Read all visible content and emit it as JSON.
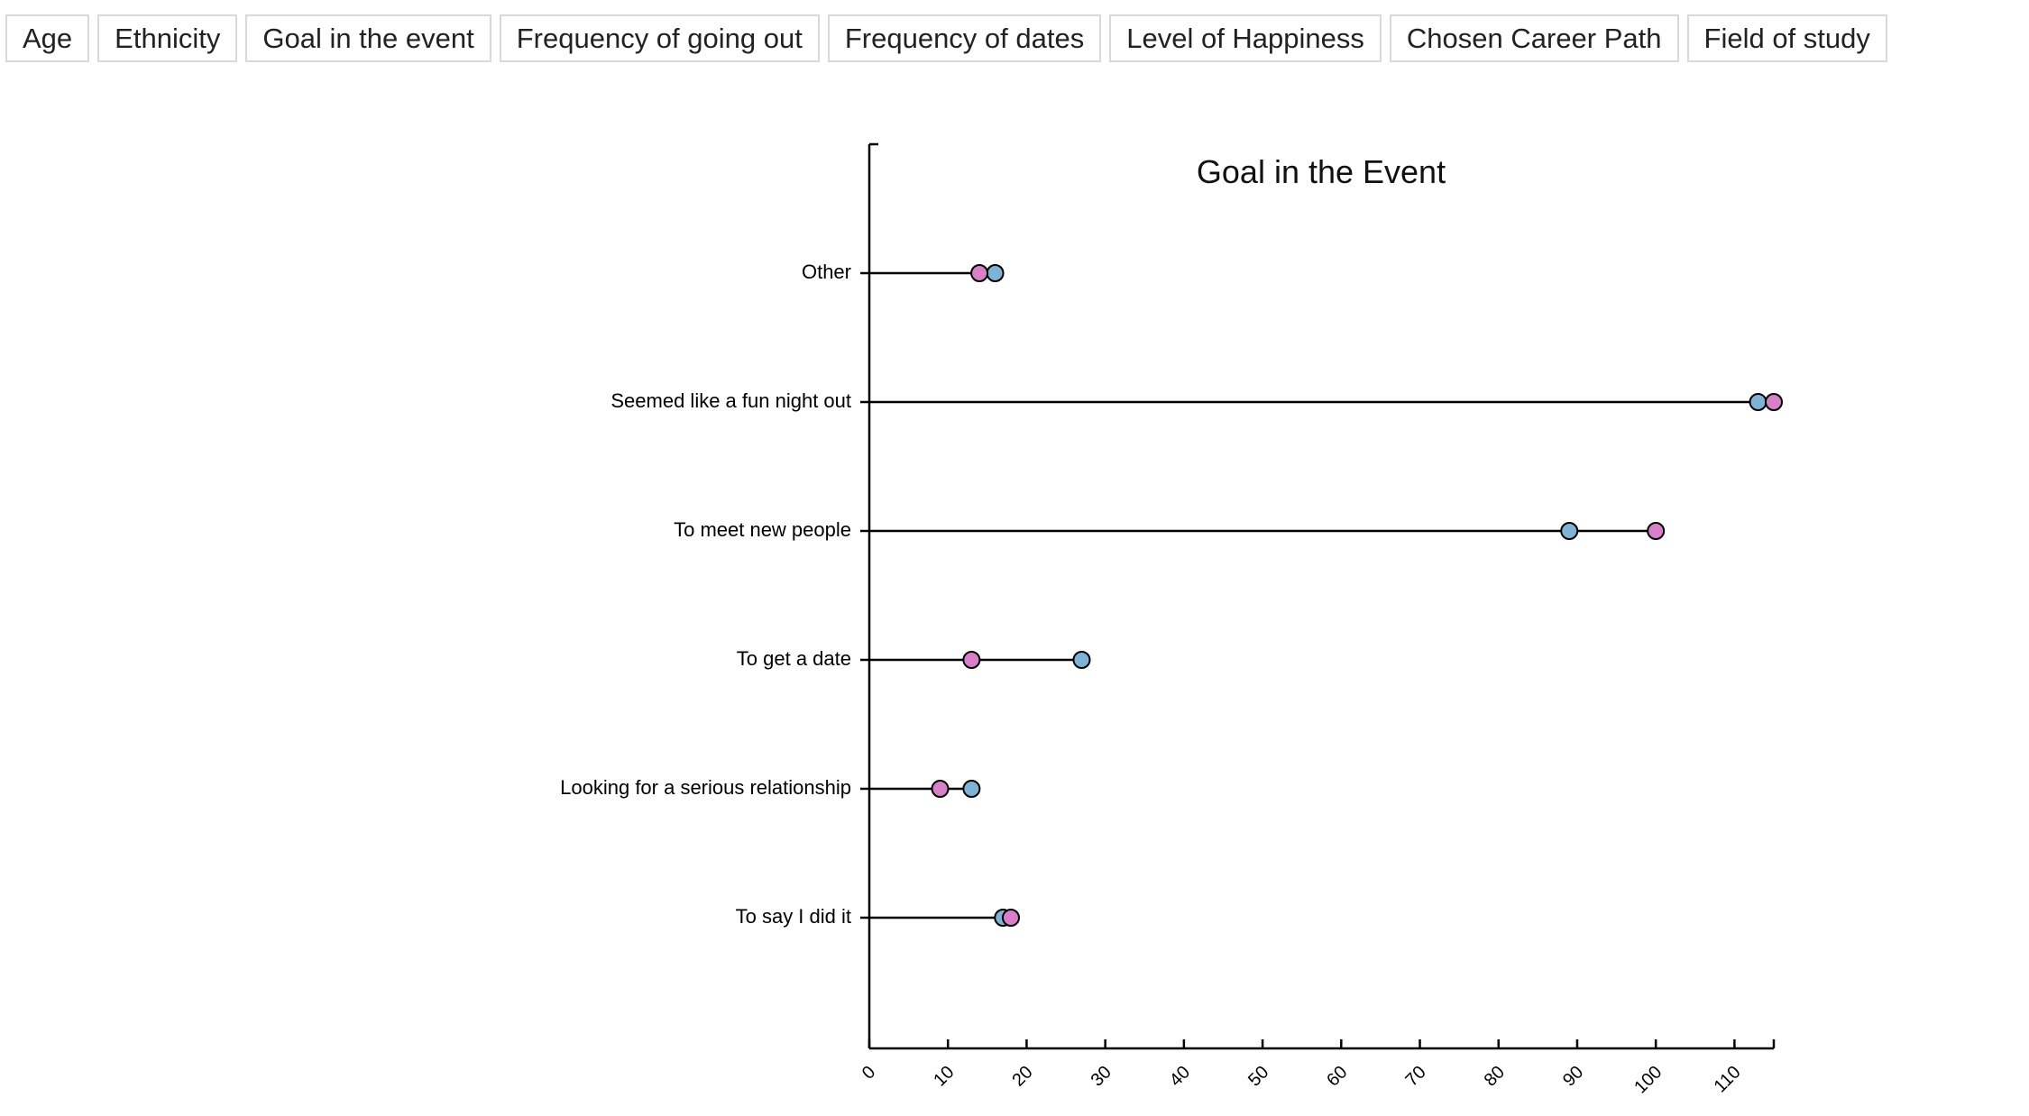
{
  "toolbar": {
    "buttons": [
      {
        "id": "age",
        "label": "Age"
      },
      {
        "id": "ethnicity",
        "label": "Ethnicity"
      },
      {
        "id": "goal",
        "label": "Goal in the event"
      },
      {
        "id": "going-out",
        "label": "Frequency of going out"
      },
      {
        "id": "dates",
        "label": "Frequency of dates"
      },
      {
        "id": "happiness",
        "label": "Level of Happiness"
      },
      {
        "id": "career",
        "label": "Chosen Career Path"
      },
      {
        "id": "field",
        "label": "Field of study"
      }
    ]
  },
  "colors": {
    "series_blue": "#7fb3d5",
    "series_pink": "#d77fc9",
    "line": "#000000"
  },
  "chart_data": {
    "type": "scatter",
    "subtype": "dumbbell",
    "title": "Goal in the Event",
    "xlabel": "",
    "ylabel": "",
    "xlim": [
      0,
      115
    ],
    "x_ticks": [
      0,
      10,
      20,
      30,
      40,
      50,
      60,
      70,
      80,
      90,
      100,
      110
    ],
    "categories": [
      "Other",
      "Seemed like a fun night out",
      "To meet new people",
      "To get a date",
      "Looking for a serious relationship",
      "To say I did it"
    ],
    "series": [
      {
        "color": "#7fb3d5",
        "values": [
          16,
          113,
          89,
          27,
          13,
          17
        ]
      },
      {
        "color": "#d77fc9",
        "values": [
          14,
          115,
          100,
          13,
          9,
          18
        ]
      }
    ],
    "grid": false,
    "legend": "none"
  }
}
